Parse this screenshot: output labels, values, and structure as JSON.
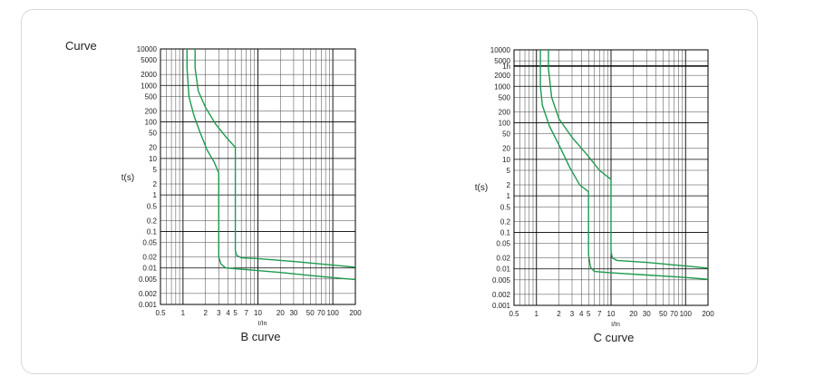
{
  "header": {
    "label": "Curve"
  },
  "colors": {
    "curve": "#1e9a4e",
    "grid": "#444444",
    "major_grid": "#000000"
  },
  "chart_data": [
    {
      "type": "line",
      "title": "B curve",
      "xlabel": "I/In",
      "ylabel": "t(s)",
      "xscale": "log",
      "yscale": "log",
      "xlim": [
        0.5,
        200
      ],
      "ylim": [
        0.001,
        10000
      ],
      "grid": true,
      "x_ticks": [
        "0.5",
        "1",
        "2",
        "3",
        "4",
        "5",
        "7",
        "10",
        "20",
        "30",
        "50",
        "70",
        "100",
        "200"
      ],
      "y_ticks": [
        "10000",
        "5000",
        "2000",
        "1000",
        "500",
        "200",
        "100",
        "50",
        "20",
        "10",
        "5",
        "2",
        "1",
        "0.5",
        "0.2",
        "0.1",
        "0.05",
        "0.02",
        "0.01",
        "0.005",
        "0.002",
        "0.001"
      ],
      "series": [
        {
          "points": [
            [
              1.13,
              10000
            ],
            [
              1.13,
              3000
            ],
            [
              1.2,
              500
            ],
            [
              1.4,
              150
            ],
            [
              1.7,
              50
            ],
            [
              2.1,
              17
            ],
            [
              2.6,
              8
            ],
            [
              3,
              4
            ],
            [
              3,
              0.02
            ],
            [
              3.2,
              0.013
            ],
            [
              3.7,
              0.01
            ],
            [
              7,
              0.009
            ],
            [
              20,
              0.0075
            ],
            [
              60,
              0.006
            ],
            [
              200,
              0.0048
            ]
          ]
        },
        {
          "points": [
            [
              1.45,
              10000
            ],
            [
              1.45,
              3000
            ],
            [
              1.6,
              700
            ],
            [
              2,
              250
            ],
            [
              2.7,
              90
            ],
            [
              3.7,
              40
            ],
            [
              5,
              20
            ],
            [
              5,
              0.03
            ],
            [
              5.2,
              0.022
            ],
            [
              6,
              0.019
            ],
            [
              10,
              0.018
            ],
            [
              30,
              0.015
            ],
            [
              80,
              0.0125
            ],
            [
              200,
              0.0105
            ]
          ]
        }
      ]
    },
    {
      "type": "line",
      "title": "C curve",
      "xlabel": "I/In",
      "ylabel": "t(s)",
      "xscale": "log",
      "yscale": "log",
      "xlim": [
        0.5,
        200
      ],
      "ylim": [
        0.001,
        10000
      ],
      "grid": true,
      "hline": {
        "y": 3600,
        "label": "1h"
      },
      "x_ticks": [
        "0.5",
        "1",
        "2",
        "3",
        "4",
        "5",
        "7",
        "10",
        "20",
        "30",
        "50",
        "70",
        "100",
        "200"
      ],
      "y_ticks": [
        "10000",
        "5000",
        "1h",
        "2000",
        "1000",
        "500",
        "200",
        "100",
        "50",
        "20",
        "10",
        "5",
        "2",
        "1",
        "0.5",
        "0.2",
        "0.1",
        "0.05",
        "0.02",
        "0.01",
        "0.005",
        "0.002",
        "0.001"
      ],
      "series": [
        {
          "points": [
            [
              1.13,
              10000
            ],
            [
              1.13,
              1000
            ],
            [
              1.2,
              300
            ],
            [
              1.5,
              80
            ],
            [
              2,
              25
            ],
            [
              2.8,
              6
            ],
            [
              3.8,
              2
            ],
            [
              5,
              1.3
            ],
            [
              5,
              0.025
            ],
            [
              5.3,
              0.011
            ],
            [
              6,
              0.0085
            ],
            [
              10,
              0.0078
            ],
            [
              30,
              0.0068
            ],
            [
              80,
              0.006
            ],
            [
              200,
              0.0052
            ]
          ]
        },
        {
          "points": [
            [
              1.45,
              10000
            ],
            [
              1.45,
              3000
            ],
            [
              1.6,
              500
            ],
            [
              2,
              130
            ],
            [
              3,
              40
            ],
            [
              5,
              12
            ],
            [
              7,
              5
            ],
            [
              10,
              2.8
            ],
            [
              10,
              0.03
            ],
            [
              10.4,
              0.02
            ],
            [
              12,
              0.017
            ],
            [
              30,
              0.015
            ],
            [
              80,
              0.0125
            ],
            [
              200,
              0.0105
            ]
          ]
        }
      ]
    }
  ]
}
